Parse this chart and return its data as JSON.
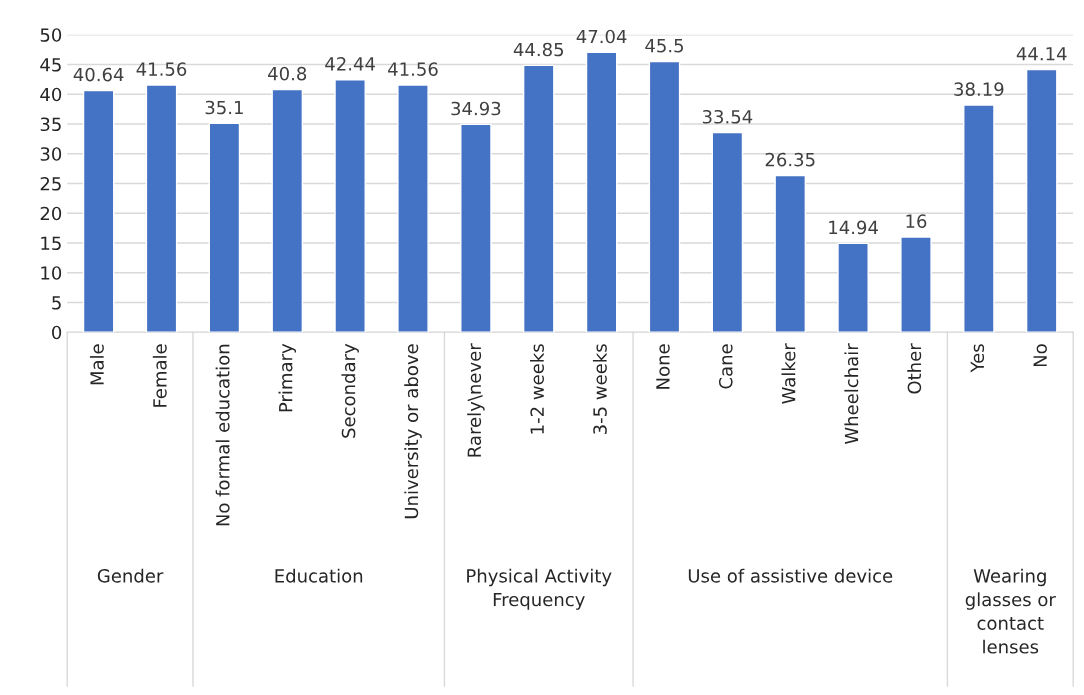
{
  "chart_data": {
    "type": "bar",
    "categories": [
      "Male",
      "Female",
      "No formal education",
      "Primary",
      "Secondary",
      "University or above",
      "Rarely\\never",
      "1-2 weeks",
      "3-5 weeks",
      "None",
      "Cane",
      "Walker",
      "Wheelchair",
      "Other",
      "Yes",
      "No"
    ],
    "values": [
      40.64,
      41.56,
      35.1,
      40.8,
      42.44,
      41.56,
      34.93,
      44.85,
      47.04,
      45.5,
      33.54,
      26.35,
      14.94,
      16,
      38.19,
      44.14
    ],
    "color": "#4472c4",
    "ylim": [
      0,
      50
    ],
    "yticks": [
      0,
      5,
      10,
      15,
      20,
      25,
      30,
      35,
      40,
      45,
      50
    ],
    "grid": "y",
    "data_labels": true,
    "annotations": [
      "Gender",
      "Education",
      "Physical Activity Frequency",
      "Use of assistive device",
      "Wearing glasses or contact lenses"
    ]
  }
}
